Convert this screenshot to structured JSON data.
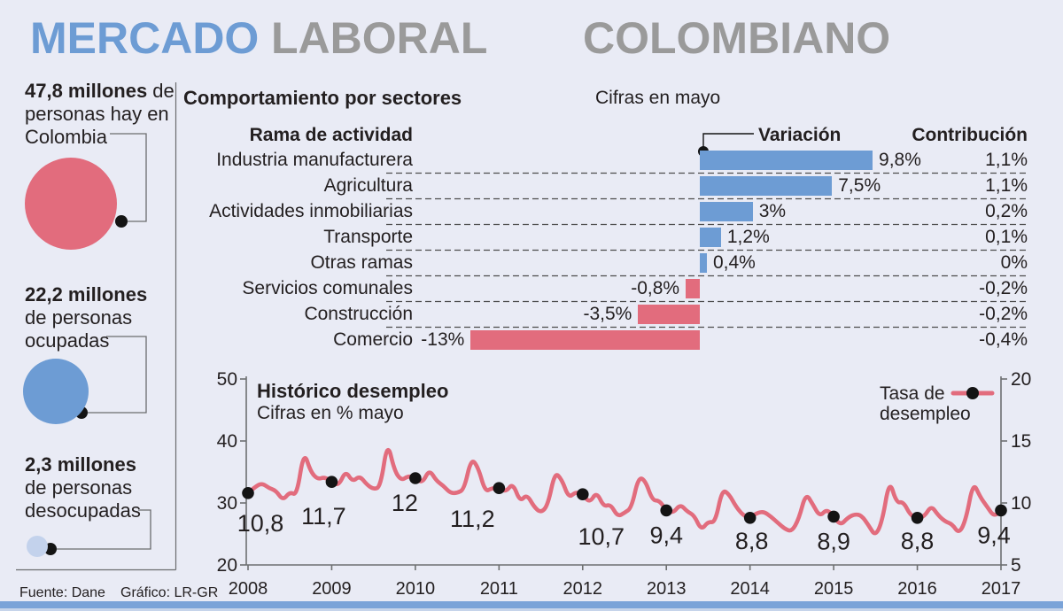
{
  "title": {
    "word1": "MERCADO",
    "word2": "LABORAL",
    "word3": "COLOMBIANO"
  },
  "stats": [
    {
      "value": "47,8 millones",
      "value_suffix": " de",
      "line2": "personas hay en",
      "line3": "Colombia"
    },
    {
      "value": "22,2 millones",
      "value_suffix": "",
      "line2": "de personas",
      "line3": "ocupadas"
    },
    {
      "value": "2,3 millones",
      "value_suffix": "",
      "line2": "de personas",
      "line3": "desocupadas"
    }
  ],
  "chart_data": [
    {
      "type": "bar",
      "orientation": "horizontal",
      "title": "Comportamiento por sectores",
      "subtitle": "Cifras en mayo",
      "column_headers": {
        "activity": "Rama de actividad",
        "variation": "Variación",
        "contribution": "Contribución"
      },
      "categories": [
        "Industria manufacturera",
        "Agricultura",
        "Actividades inmobiliarias",
        "Transporte",
        "Otras ramas",
        "Servicios comunales",
        "Construcción",
        "Comercio"
      ],
      "values": [
        9.8,
        7.5,
        3,
        1.2,
        0.4,
        -0.8,
        -3.5,
        -13
      ],
      "value_labels": [
        "9,8%",
        "7,5%",
        "3%",
        "1,2%",
        "0,4%",
        "-0,8%",
        "-3,5%",
        "-13%"
      ],
      "contributions": [
        "1,1%",
        "1,1%",
        "0,2%",
        "0,1%",
        "0%",
        "-0,2%",
        "-0,2%",
        "-0,4%"
      ],
      "positive_color": "#6d9cd4",
      "negative_color": "#e26c7d",
      "separator_style": "dashed"
    },
    {
      "type": "line",
      "title": "Histórico desempleo",
      "subtitle": "Cifras en % mayo",
      "legend": {
        "line1": "Tasa de",
        "line2": "desempleo",
        "position": "top-right"
      },
      "line_color": "#e26c7d",
      "x_years": [
        2008,
        2009,
        2010,
        2011,
        2012,
        2013,
        2014,
        2015,
        2016,
        2017
      ],
      "left_axis_ticks": [
        50,
        40,
        30,
        20
      ],
      "right_axis_ticks": [
        20,
        15,
        10,
        5
      ],
      "right_axis_range": [
        5,
        20
      ],
      "grid": false,
      "may_values": [
        10.8,
        11.7,
        12,
        11.2,
        10.7,
        9.4,
        8.8,
        8.9,
        8.8,
        9.4
      ],
      "may_labels": [
        "10,8",
        "11,7",
        "12",
        "11,2",
        "10,7",
        "9,4",
        "8,8",
        "8,9",
        "8,8",
        "9,4"
      ],
      "monthly_start": "2008-05",
      "monthly_values": [
        10.8,
        11.3,
        11.6,
        11.2,
        11.0,
        10.2,
        10.9,
        10.6,
        14.2,
        12.5,
        11.9,
        12.1,
        11.7,
        11.4,
        12.6,
        11.7,
        12.2,
        11.5,
        11.1,
        11.3,
        15.0,
        12.6,
        11.8,
        12.2,
        12.0,
        11.6,
        12.7,
        11.8,
        11.4,
        10.8,
        10.8,
        11.1,
        13.6,
        12.9,
        10.9,
        11.2,
        11.2,
        10.9,
        11.6,
        10.1,
        10.7,
        9.7,
        9.2,
        9.8,
        12.5,
        11.9,
        10.4,
        10.9,
        10.7,
        10.0,
        10.9,
        9.7,
        9.9,
        8.9,
        9.2,
        9.6,
        12.1,
        11.8,
        10.2,
        10.2,
        9.4,
        9.2,
        9.9,
        9.3,
        9.0,
        7.8,
        8.5,
        8.4,
        11.1,
        10.7,
        9.7,
        9.0,
        8.8,
        9.2,
        9.3,
        8.9,
        8.4,
        7.9,
        7.7,
        8.7,
        10.8,
        9.9,
        8.9,
        9.5,
        8.9,
        8.2,
        8.8,
        9.1,
        9.0,
        8.2,
        7.3,
        8.6,
        11.9,
        10.0,
        10.1,
        9.0,
        8.8,
        8.9,
        9.8,
        9.0,
        8.5,
        8.3,
        7.5,
        8.7,
        11.7,
        10.5,
        9.7,
        8.9,
        9.4
      ]
    }
  ],
  "footer": {
    "source": "Fuente: Dane",
    "credit": "Gráfico: LR-GR"
  },
  "colors": {
    "background": "#e9ebf5",
    "title_blue": "#6d9cd4",
    "title_gray": "#9a9a9a",
    "bar_positive": "#6d9cd4",
    "bar_negative": "#e26c7d",
    "line": "#e26c7d",
    "circle_population": "#e26c7d",
    "circle_employed": "#6d9cd4",
    "circle_unemployed": "#c3d2ec",
    "text": "#231f20",
    "bottom_bar": "#7aa3d8",
    "bottom_bar_light": "#c6d4ea"
  }
}
